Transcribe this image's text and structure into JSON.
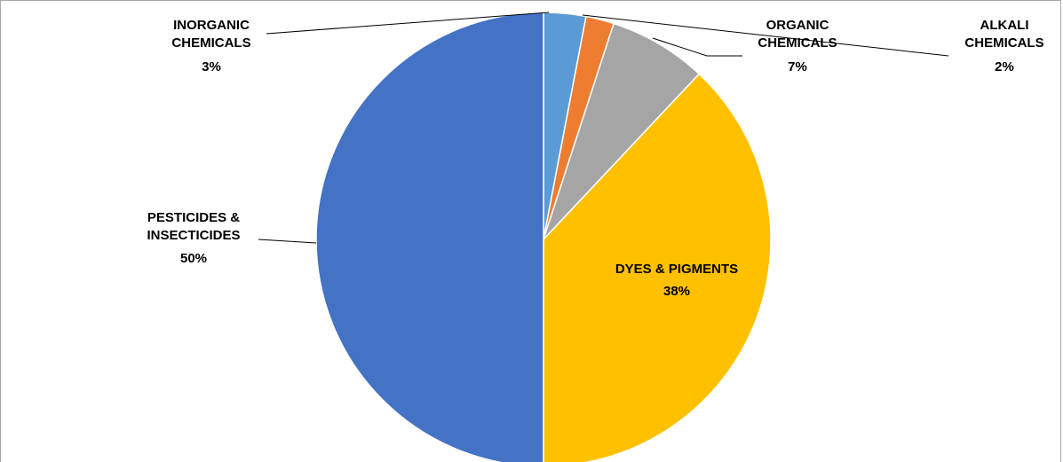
{
  "chart_data": {
    "type": "pie",
    "title": "",
    "slices": [
      {
        "name_lines": [
          "INORGANIC",
          "CHEMICALS"
        ],
        "pct_label": "3%",
        "value": 3,
        "color": "#5b9bd5"
      },
      {
        "name_lines": [
          "ALKALI",
          "CHEMICALS"
        ],
        "pct_label": "2%",
        "value": 2,
        "color": "#ed7d31"
      },
      {
        "name_lines": [
          "ORGANIC",
          "CHEMICALS"
        ],
        "pct_label": "7%",
        "value": 7,
        "color": "#a5a5a5"
      },
      {
        "name_lines": [
          "DYES & PIGMENTS"
        ],
        "pct_label": "38%",
        "value": 38,
        "color": "#ffc000"
      },
      {
        "name_lines": [
          "PESTICIDES &",
          "INSECTICIDES"
        ],
        "pct_label": "50%",
        "value": 50,
        "color": "#4472c4"
      }
    ],
    "legend": "none",
    "labels": "data labels with leader lines"
  }
}
